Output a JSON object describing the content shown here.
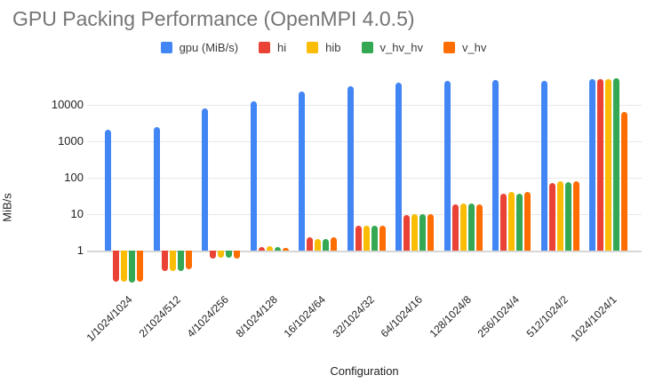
{
  "chart_data": {
    "type": "bar",
    "title": "GPU Packing Performance (OpenMPI 4.0.5)",
    "xlabel": "Configuration",
    "ylabel": "MiB/s",
    "y_scale": "log",
    "y_ticks": [
      1,
      10,
      100,
      1000,
      10000
    ],
    "ylim": [
      0.1,
      63000
    ],
    "grid": true,
    "legend_position": "top",
    "categories": [
      "1/1024/1024",
      "2/1024/512",
      "4/1024/256",
      "8/1024/128",
      "16/1024/64",
      "32/1024/32",
      "64/1024/16",
      "128/1024/8",
      "256/1024/4",
      "512/1024/2",
      "1024/1024/1"
    ],
    "series": [
      {
        "name": "gpu (MiB/s)",
        "color": "#4285F4",
        "values": [
          2100,
          2500,
          8000,
          12500,
          23000,
          32000,
          41000,
          45000,
          48000,
          45000,
          50000
        ]
      },
      {
        "name": "hi",
        "color": "#EA4335",
        "values": [
          0.14,
          0.28,
          0.6,
          1.25,
          2.3,
          4.8,
          9.5,
          19,
          36,
          72,
          52000
        ]
      },
      {
        "name": "hib",
        "color": "#FBBC04",
        "values": [
          0.14,
          0.28,
          0.65,
          1.3,
          2.1,
          4.7,
          10,
          20,
          40,
          78,
          52000
        ]
      },
      {
        "name": "v_hv_hv",
        "color": "#34A853",
        "values": [
          0.13,
          0.27,
          0.65,
          1.25,
          2.1,
          4.7,
          10,
          20,
          36,
          75,
          55000
        ]
      },
      {
        "name": "v_hv",
        "color": "#FF6D01",
        "values": [
          0.14,
          0.3,
          0.6,
          1.2,
          2.3,
          4.9,
          10,
          19,
          40,
          78,
          6300
        ]
      }
    ]
  },
  "colors": {
    "title_text": "#757575",
    "axis_text": "#222222",
    "legend_text": "#3c3c3c",
    "gridline": "#e8e8e8",
    "baseline": "#d6d6d6",
    "background": "#ffffff"
  }
}
